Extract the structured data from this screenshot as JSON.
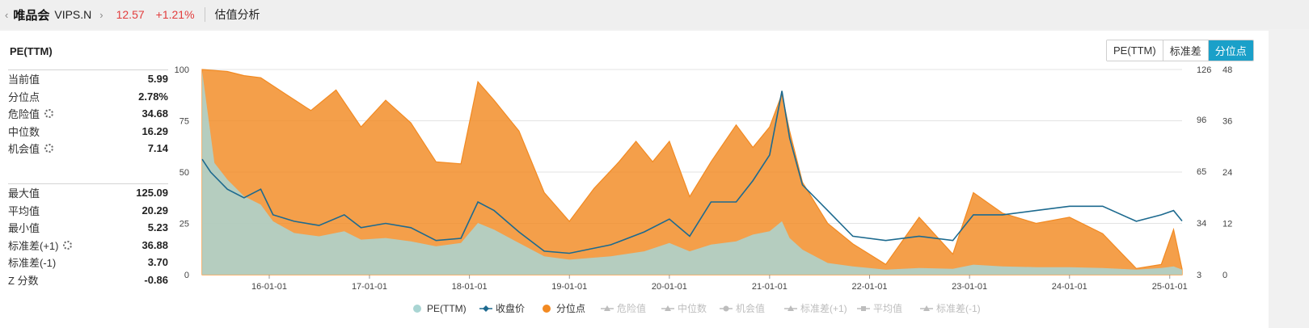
{
  "header": {
    "back_icon": "chevron-left-icon",
    "name": "唯品会",
    "ticker": "VIPS.N",
    "forward_icon": "chevron-right-icon",
    "price": "12.57",
    "change": "+1.21%",
    "section": "估值分析"
  },
  "panel": {
    "title": "PE(TTM)",
    "buttons": [
      {
        "label": "PE(TTM)",
        "active": false
      },
      {
        "label": "标准差",
        "active": false
      },
      {
        "label": "分位点",
        "active": true
      }
    ]
  },
  "stats_top": [
    {
      "label": "当前值",
      "value": "5.99",
      "gear": false
    },
    {
      "label": "分位点",
      "value": "2.78%",
      "gear": false
    },
    {
      "label": "危险值",
      "value": "34.68",
      "gear": true
    },
    {
      "label": "中位数",
      "value": "16.29",
      "gear": false
    },
    {
      "label": "机会值",
      "value": "7.14",
      "gear": true
    }
  ],
  "stats_bottom": [
    {
      "label": "最大值",
      "value": "125.09",
      "gear": false
    },
    {
      "label": "平均值",
      "value": "20.29",
      "gear": false
    },
    {
      "label": "最小值",
      "value": "5.23",
      "gear": false
    },
    {
      "label": "标准差(+1)",
      "value": "36.88",
      "gear": true
    },
    {
      "label": "标准差(-1)",
      "value": "3.70",
      "gear": false
    },
    {
      "label": "Z 分数",
      "value": "-0.86",
      "gear": false
    }
  ],
  "colors": {
    "percentile": "#f28a22",
    "pe": "#a9d5d3",
    "price": "#1d6a8f",
    "disabled": "#bdbdbd",
    "accent": "#1aa0c9",
    "up": "#e23c3c"
  },
  "chart_data": {
    "type": "area",
    "x_ticks": [
      "16-01-01",
      "17-01-01",
      "18-01-01",
      "19-01-01",
      "20-01-01",
      "21-01-01",
      "22-01-01",
      "23-01-01",
      "24-01-01",
      "25-01-01"
    ],
    "left_axis": {
      "ticks": [
        0,
        25,
        50,
        75,
        100
      ],
      "range": [
        0,
        100
      ]
    },
    "right_axis_pe": {
      "ticks": [
        3,
        34,
        65,
        96,
        126
      ],
      "range": [
        3,
        126
      ]
    },
    "right_axis_price": {
      "ticks": [
        0,
        12,
        24,
        36,
        48
      ],
      "range": [
        0,
        48
      ]
    },
    "grid": true,
    "legend_position": "bottom",
    "series": [
      {
        "name": "PE(TTM)",
        "marker": "circle",
        "axis": "right_axis_pe",
        "points": [
          [
            "2015-05-01",
            125
          ],
          [
            "2015-06-15",
            70
          ],
          [
            "2015-08-01",
            60
          ],
          [
            "2015-10-01",
            50
          ],
          [
            "2015-12-01",
            45
          ],
          [
            "2016-01-15",
            35
          ],
          [
            "2016-04-01",
            28
          ],
          [
            "2016-07-01",
            26
          ],
          [
            "2016-10-01",
            29
          ],
          [
            "2016-12-01",
            24
          ],
          [
            "2017-03-01",
            25
          ],
          [
            "2017-06-01",
            23
          ],
          [
            "2017-09-01",
            20
          ],
          [
            "2017-12-01",
            22
          ],
          [
            "2018-02-01",
            34
          ],
          [
            "2018-04-01",
            30
          ],
          [
            "2018-07-01",
            22
          ],
          [
            "2018-10-01",
            14
          ],
          [
            "2019-01-01",
            12
          ],
          [
            "2019-06-01",
            14
          ],
          [
            "2019-10-01",
            17
          ],
          [
            "2020-01-01",
            22
          ],
          [
            "2020-03-15",
            17
          ],
          [
            "2020-06-01",
            21
          ],
          [
            "2020-09-01",
            23
          ],
          [
            "2020-11-01",
            27
          ],
          [
            "2021-01-01",
            29
          ],
          [
            "2021-02-15",
            35
          ],
          [
            "2021-03-15",
            25
          ],
          [
            "2021-05-01",
            18
          ],
          [
            "2021-08-01",
            10
          ],
          [
            "2021-11-01",
            8
          ],
          [
            "2022-03-01",
            6
          ],
          [
            "2022-07-01",
            7
          ],
          [
            "2022-11-01",
            6.5
          ],
          [
            "2023-01-15",
            9
          ],
          [
            "2023-05-01",
            8
          ],
          [
            "2023-09-01",
            7.5
          ],
          [
            "2024-01-01",
            7.5
          ],
          [
            "2024-05-01",
            7
          ],
          [
            "2024-09-01",
            6
          ],
          [
            "2024-12-01",
            7
          ],
          [
            "2025-01-15",
            8
          ],
          [
            "2025-02-15",
            5.99
          ]
        ]
      },
      {
        "name": "收盘价",
        "marker": "diamond-line",
        "axis": "right_axis_price",
        "points": [
          [
            "2015-05-01",
            27
          ],
          [
            "2015-06-01",
            24
          ],
          [
            "2015-08-01",
            20
          ],
          [
            "2015-10-01",
            18
          ],
          [
            "2015-12-01",
            20
          ],
          [
            "2016-01-15",
            14
          ],
          [
            "2016-04-01",
            12.5
          ],
          [
            "2016-07-01",
            11.5
          ],
          [
            "2016-10-01",
            14
          ],
          [
            "2016-12-01",
            11
          ],
          [
            "2017-03-01",
            12
          ],
          [
            "2017-06-01",
            11
          ],
          [
            "2017-09-01",
            8
          ],
          [
            "2017-12-01",
            8.5
          ],
          [
            "2018-02-01",
            17
          ],
          [
            "2018-04-01",
            15
          ],
          [
            "2018-07-01",
            10
          ],
          [
            "2018-10-01",
            5.5
          ],
          [
            "2019-01-01",
            5
          ],
          [
            "2019-06-01",
            7
          ],
          [
            "2019-10-01",
            10
          ],
          [
            "2020-01-01",
            13
          ],
          [
            "2020-03-15",
            9
          ],
          [
            "2020-06-01",
            17
          ],
          [
            "2020-09-01",
            17
          ],
          [
            "2020-11-01",
            22
          ],
          [
            "2021-01-01",
            28
          ],
          [
            "2021-02-15",
            43
          ],
          [
            "2021-03-15",
            32
          ],
          [
            "2021-05-01",
            21
          ],
          [
            "2021-08-01",
            15
          ],
          [
            "2021-11-01",
            9
          ],
          [
            "2022-03-01",
            8
          ],
          [
            "2022-07-01",
            9
          ],
          [
            "2022-11-01",
            8
          ],
          [
            "2023-01-15",
            14
          ],
          [
            "2023-05-01",
            14
          ],
          [
            "2023-09-01",
            15
          ],
          [
            "2024-01-01",
            16
          ],
          [
            "2024-05-01",
            16
          ],
          [
            "2024-09-01",
            12.5
          ],
          [
            "2024-12-01",
            14
          ],
          [
            "2025-01-15",
            15
          ],
          [
            "2025-02-15",
            12.57
          ]
        ]
      },
      {
        "name": "分位点",
        "marker": "circle",
        "axis": "left_axis",
        "points": [
          [
            "2015-05-01",
            100
          ],
          [
            "2015-08-01",
            99
          ],
          [
            "2015-10-01",
            97
          ],
          [
            "2015-12-01",
            96
          ],
          [
            "2016-03-01",
            88
          ],
          [
            "2016-06-01",
            80
          ],
          [
            "2016-09-01",
            90
          ],
          [
            "2016-12-01",
            72
          ],
          [
            "2017-03-01",
            85
          ],
          [
            "2017-06-01",
            74
          ],
          [
            "2017-09-01",
            55
          ],
          [
            "2017-12-01",
            54
          ],
          [
            "2018-02-01",
            94
          ],
          [
            "2018-04-01",
            85
          ],
          [
            "2018-07-01",
            70
          ],
          [
            "2018-10-01",
            40
          ],
          [
            "2019-01-01",
            26
          ],
          [
            "2019-04-01",
            42
          ],
          [
            "2019-07-01",
            55
          ],
          [
            "2019-09-01",
            65
          ],
          [
            "2019-11-01",
            55
          ],
          [
            "2020-01-01",
            65
          ],
          [
            "2020-03-15",
            38
          ],
          [
            "2020-06-01",
            55
          ],
          [
            "2020-09-01",
            73
          ],
          [
            "2020-11-01",
            62
          ],
          [
            "2021-01-01",
            72
          ],
          [
            "2021-02-15",
            88
          ],
          [
            "2021-03-15",
            70
          ],
          [
            "2021-05-01",
            45
          ],
          [
            "2021-08-01",
            25
          ],
          [
            "2021-11-01",
            15
          ],
          [
            "2022-03-01",
            5
          ],
          [
            "2022-07-01",
            28
          ],
          [
            "2022-11-01",
            10
          ],
          [
            "2023-01-15",
            40
          ],
          [
            "2023-05-01",
            30
          ],
          [
            "2023-09-01",
            25
          ],
          [
            "2024-01-01",
            28
          ],
          [
            "2024-05-01",
            20
          ],
          [
            "2024-09-01",
            3
          ],
          [
            "2024-12-01",
            5
          ],
          [
            "2025-01-15",
            22
          ],
          [
            "2025-02-15",
            2.78
          ]
        ]
      }
    ],
    "legend": [
      {
        "name": "PE(TTM)",
        "marker": "circle",
        "enabled": true
      },
      {
        "name": "收盘价",
        "marker": "diamond-line",
        "enabled": true
      },
      {
        "name": "分位点",
        "marker": "circle",
        "enabled": true
      },
      {
        "name": "危险值",
        "marker": "triangle-line",
        "enabled": false
      },
      {
        "name": "中位数",
        "marker": "triangle-line",
        "enabled": false
      },
      {
        "name": "机会值",
        "marker": "circle-line",
        "enabled": false
      },
      {
        "name": "标准差(+1)",
        "marker": "triangle-line",
        "enabled": false
      },
      {
        "name": "平均值",
        "marker": "square-line",
        "enabled": false
      },
      {
        "name": "标准差(-1)",
        "marker": "triangle-line",
        "enabled": false
      }
    ]
  }
}
